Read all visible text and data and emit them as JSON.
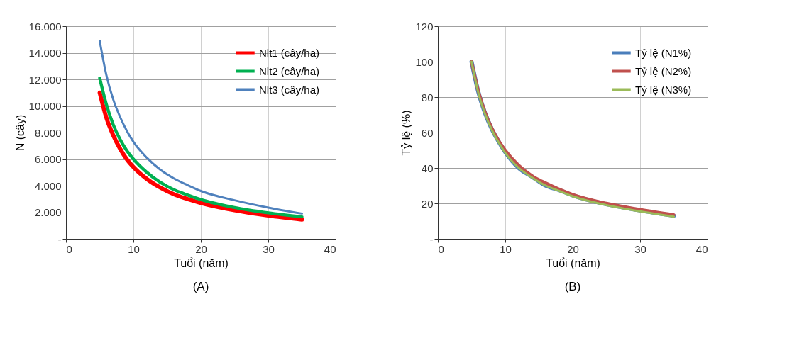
{
  "chart_data": [
    {
      "type": "line",
      "xlabel": "Tuổi (năm)",
      "ylabel": "N (cây)",
      "annotations": [
        "(A)"
      ],
      "grid": true,
      "legend": "top right",
      "line_style": "solid",
      "xlim": [
        0,
        40
      ],
      "xticks": [
        0,
        10,
        20,
        30,
        40
      ],
      "ylim": [
        0,
        16000
      ],
      "yticks": [
        {
          "value": 0,
          "label": "-"
        },
        {
          "value": 2000,
          "label": "2.000"
        },
        {
          "value": 4000,
          "label": "4.000"
        },
        {
          "value": 6000,
          "label": "6.000"
        },
        {
          "value": 8000,
          "label": "8.000"
        },
        {
          "value": 10000,
          "label": "10.000"
        },
        {
          "value": 12000,
          "label": "12.000"
        },
        {
          "value": 14000,
          "label": "14.000"
        },
        {
          "value": 16000,
          "label": "16.000"
        }
      ],
      "x": [
        5,
        6,
        7,
        8,
        9,
        10,
        12,
        14,
        16,
        18,
        20,
        25,
        30,
        35
      ],
      "series": [
        {
          "name": "Nlt1 (cây/ha)",
          "color": "#ff0000",
          "values": [
            11000,
            9100,
            7800,
            6800,
            6000,
            5400,
            4500,
            3850,
            3350,
            3000,
            2700,
            2150,
            1750,
            1450
          ]
        },
        {
          "name": "Nlt2 (cây/ha)",
          "color": "#00b050",
          "values": [
            12100,
            10100,
            8600,
            7500,
            6650,
            6000,
            5000,
            4250,
            3700,
            3300,
            2950,
            2350,
            1950,
            1650
          ]
        },
        {
          "name": "Nlt3 (cây/ha)",
          "color": "#4f81bd",
          "values": [
            14900,
            12300,
            10500,
            9200,
            8150,
            7300,
            6100,
            5200,
            4550,
            4050,
            3600,
            2900,
            2350,
            1900
          ]
        }
      ]
    },
    {
      "type": "line",
      "xlabel": "Tuổi (năm)",
      "ylabel": "Tỷ lệ (%)",
      "annotations": [
        "(B)"
      ],
      "grid": true,
      "legend": "top right",
      "line_style": "solid",
      "xlim": [
        0,
        40
      ],
      "xticks": [
        0,
        10,
        20,
        30,
        40
      ],
      "ylim": [
        0,
        120
      ],
      "yticks": [
        {
          "value": 0,
          "label": "-"
        },
        20,
        40,
        60,
        80,
        100,
        120
      ],
      "x": [
        5,
        6,
        7,
        8,
        9,
        10,
        12,
        14,
        16,
        18,
        20,
        25,
        30,
        35
      ],
      "series": [
        {
          "name": "Tỷ lệ (N1%)",
          "color": "#4a7ebb",
          "values": [
            100,
            83,
            71,
            62,
            55,
            49,
            40,
            35,
            30,
            27.5,
            24.5,
            19.5,
            16,
            13
          ]
        },
        {
          "name": "Tỷ lệ (N2%)",
          "color": "#c0504d",
          "values": [
            100,
            83.5,
            71.5,
            62.5,
            55.5,
            50,
            41.5,
            35.5,
            31.5,
            28,
            25,
            20,
            16.5,
            13.5
          ]
        },
        {
          "name": "Tỷ lệ (N3%)",
          "color": "#9bbb59",
          "values": [
            100,
            82.5,
            70.5,
            61.5,
            54.5,
            48.5,
            40,
            34.5,
            30,
            27,
            24,
            19,
            15.5,
            12.5
          ]
        }
      ]
    }
  ]
}
